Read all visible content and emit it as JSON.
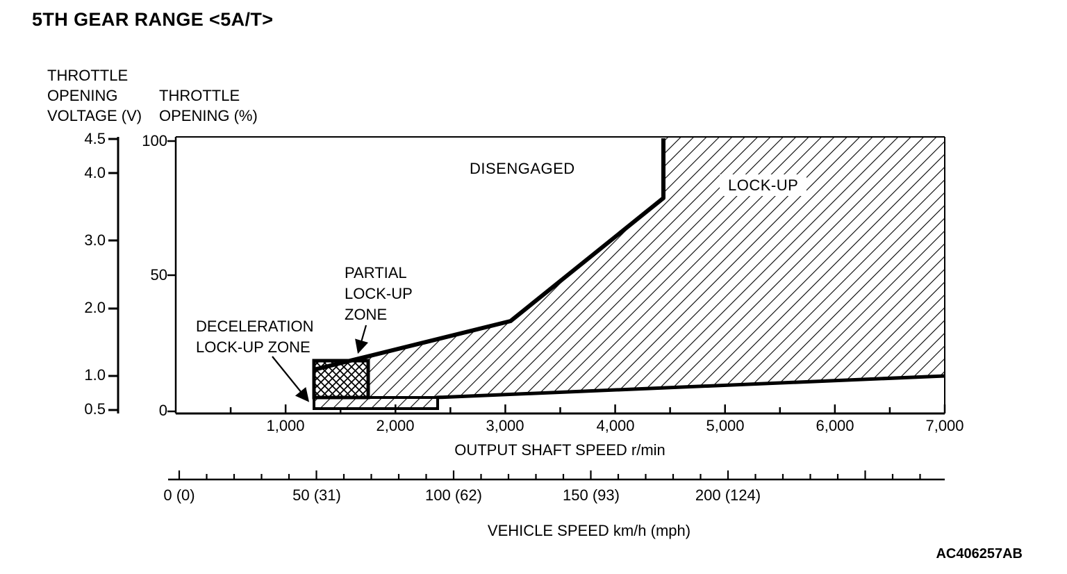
{
  "labels": {
    "title": "5TH GEAR RANGE <5A/T>",
    "voltage_axis": "THROTTLE\nOPENING\nVOLTAGE (V)",
    "percent_axis": "THROTTLE\nOPENING (%)",
    "x_axis": "OUTPUT SHAFT SPEED r/min",
    "speed_axis": "VEHICLE SPEED km/h (mph)",
    "disengaged": "DISENGAGED",
    "lockup": "LOCK-UP",
    "partial": "PARTIAL\nLOCK-UP\nZONE",
    "decel": "DECELERATION\nLOCK-UP ZONE",
    "code": "AC406257AB"
  },
  "ticks": {
    "voltage": [
      "4.5",
      "4.0",
      "3.0",
      "2.0",
      "1.0",
      "0.5"
    ],
    "percent": [
      "100",
      "50",
      "0"
    ],
    "rpm": [
      "1,000",
      "2,000",
      "3,000",
      "4,000",
      "5,000",
      "6,000",
      "7,000"
    ],
    "speed": [
      "0 (0)",
      "50 (31)",
      "100 (62)",
      "150 (93)",
      "200 (124)"
    ]
  },
  "chart_data": {
    "type": "area",
    "title": "5TH GEAR RANGE <5A/T>",
    "xlabel": "OUTPUT SHAFT SPEED r/min",
    "x2label": "VEHICLE SPEED km/h (mph)",
    "ylabel_outer": "THROTTLE OPENING VOLTAGE (V)",
    "ylabel_inner": "THROTTLE OPENING (%)",
    "xlim_rpm": [
      0,
      7000
    ],
    "ylim_percent": [
      0,
      100
    ],
    "ylim_voltage": [
      0.5,
      4.5
    ],
    "x_ticks_rpm": [
      1000,
      2000,
      3000,
      4000,
      5000,
      6000,
      7000
    ],
    "x_minor_tick_step_rpm": 500,
    "x2_ticks_kmh_mph": [
      [
        0,
        0
      ],
      [
        50,
        31
      ],
      [
        100,
        62
      ],
      [
        150,
        93
      ],
      [
        200,
        124
      ]
    ],
    "x2_minor_tick_step_kmh": 10,
    "y_ticks_percent": [
      100,
      50,
      0
    ],
    "y_ticks_voltage": [
      4.5,
      4.0,
      3.0,
      2.0,
      1.0,
      0.5
    ],
    "grid": false,
    "legend": "none",
    "regions": [
      {
        "name": "DISENGAGED",
        "fill": "white",
        "location": "upper-left of engage boundary"
      },
      {
        "name": "LOCK-UP",
        "fill": "diagonal-hatch",
        "location": "right of engage boundary, above release boundary"
      },
      {
        "name": "PARTIAL LOCK-UP ZONE",
        "fill": "cross-hatch",
        "location": "small box at lock-up onset ~1250-1750 r/min"
      },
      {
        "name": "DECELERATION LOCK-UP ZONE",
        "fill": "diagonal-hatch",
        "location": "thin strip ~1250-2400 r/min at low throttle"
      }
    ],
    "series": [
      {
        "name": "lock-up engage boundary",
        "x_rpm": [
          1260,
          3050,
          4450,
          4450
        ],
        "y_percent": [
          16,
          34,
          79,
          100
        ]
      },
      {
        "name": "lock-up release boundary",
        "x_rpm": [
          1750,
          2400,
          7000
        ],
        "y_percent": [
          5,
          5,
          13
        ]
      },
      {
        "name": "partial lock-up zone outline",
        "x_rpm": [
          1260,
          1750,
          1750,
          1260
        ],
        "y_percent": [
          19,
          19,
          5,
          5
        ]
      },
      {
        "name": "deceleration lock-up zone outline",
        "x_rpm": [
          1260,
          2400,
          2400,
          1260
        ],
        "y_percent": [
          5,
          5,
          2,
          2
        ]
      }
    ]
  },
  "colors": {
    "ink": "#000000",
    "background": "#ffffff"
  }
}
